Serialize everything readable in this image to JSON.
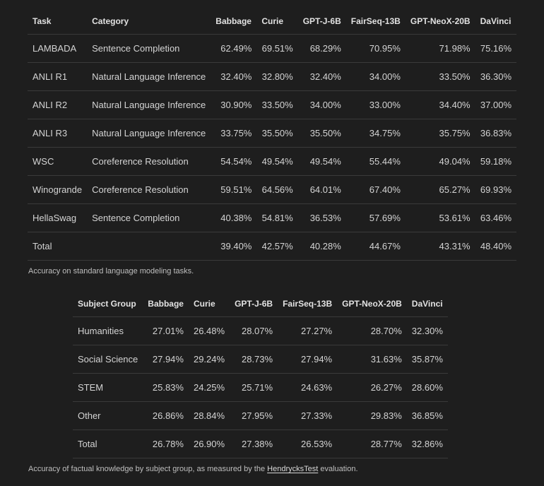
{
  "table1": {
    "headers": [
      "Task",
      "Category",
      "Babbage",
      "Curie",
      "GPT-J-6B",
      "FairSeq-13B",
      "GPT-NeoX-20B",
      "DaVinci"
    ],
    "rows": [
      [
        "LAMBADA",
        "Sentence Completion",
        "62.49%",
        "69.51%",
        "68.29%",
        "70.95%",
        "71.98%",
        "75.16%"
      ],
      [
        "ANLI R1",
        "Natural Language Inference",
        "32.40%",
        "32.80%",
        "32.40%",
        "34.00%",
        "33.50%",
        "36.30%"
      ],
      [
        "ANLI R2",
        "Natural Language Inference",
        "30.90%",
        "33.50%",
        "34.00%",
        "33.00%",
        "34.40%",
        "37.00%"
      ],
      [
        "ANLI R3",
        "Natural Language Inference",
        "33.75%",
        "35.50%",
        "35.50%",
        "34.75%",
        "35.75%",
        "36.83%"
      ],
      [
        "WSC",
        "Coreference Resolution",
        "54.54%",
        "49.54%",
        "49.54%",
        "55.44%",
        "49.04%",
        "59.18%"
      ],
      [
        "Winogrande",
        "Coreference Resolution",
        "59.51%",
        "64.56%",
        "64.01%",
        "67.40%",
        "65.27%",
        "69.93%"
      ],
      [
        "HellaSwag",
        "Sentence Completion",
        "40.38%",
        "54.81%",
        "36.53%",
        "57.69%",
        "53.61%",
        "63.46%"
      ],
      [
        "Total",
        "",
        "39.40%",
        "42.57%",
        "40.28%",
        "44.67%",
        "43.31%",
        "48.40%"
      ]
    ]
  },
  "caption1": "Accuracy on standard language modeling tasks.",
  "table2": {
    "headers": [
      "Subject Group",
      "Babbage",
      "Curie",
      "GPT-J-6B",
      "FairSeq-13B",
      "GPT-NeoX-20B",
      "DaVinci"
    ],
    "rows": [
      [
        "Humanities",
        "27.01%",
        "26.48%",
        "28.07%",
        "27.27%",
        "28.70%",
        "32.30%"
      ],
      [
        "Social Science",
        "27.94%",
        "29.24%",
        "28.73%",
        "27.94%",
        "31.63%",
        "35.87%"
      ],
      [
        "STEM",
        "25.83%",
        "24.25%",
        "25.71%",
        "24.63%",
        "26.27%",
        "28.60%"
      ],
      [
        "Other",
        "26.86%",
        "28.84%",
        "27.95%",
        "27.33%",
        "29.83%",
        "36.85%"
      ],
      [
        "Total",
        "26.78%",
        "26.90%",
        "27.38%",
        "26.53%",
        "28.77%",
        "32.86%"
      ]
    ]
  },
  "caption2": {
    "prefix": "Accuracy of factual knowledge by subject group, as measured by the ",
    "link": "HendrycksTest",
    "suffix": " evaluation."
  }
}
